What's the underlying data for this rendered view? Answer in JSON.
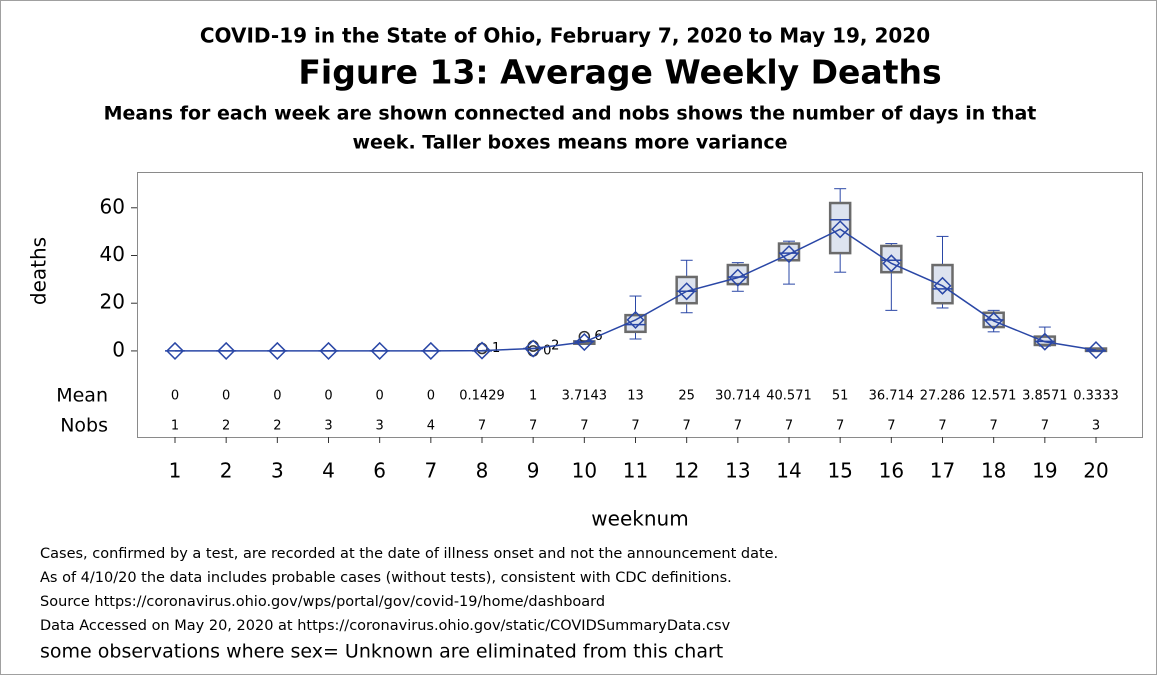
{
  "chart_data": {
    "type": "box",
    "supertitle": "COVID-19 in the State of Ohio, February 7, 2020 to May 19, 2020",
    "title": "Figure 13: Average Weekly Deaths",
    "subtitle": [
      "Means for each week are shown connected and nobs shows the number of days in that",
      "week. Taller boxes means more variance"
    ],
    "x_label": "weeknum",
    "y_label": "deaths",
    "categories": [
      1,
      2,
      3,
      4,
      6,
      7,
      8,
      9,
      10,
      11,
      12,
      13,
      14,
      15,
      16,
      17,
      18,
      19,
      20
    ],
    "min": [
      0,
      0,
      0,
      0,
      0,
      0,
      0,
      1,
      3,
      5,
      16,
      25,
      28,
      33,
      17,
      18,
      8,
      2,
      0
    ],
    "q1": [
      0,
      0,
      0,
      0,
      0,
      0,
      0,
      1,
      3,
      8,
      20,
      28,
      38,
      41,
      33,
      20,
      10,
      2.5,
      0
    ],
    "median": [
      0,
      0,
      0,
      0,
      0,
      0,
      0,
      1,
      4,
      11,
      25,
      31,
      41,
      55,
      38,
      26,
      13,
      4,
      0
    ],
    "q3": [
      0,
      0,
      0,
      0,
      0,
      0,
      0,
      1,
      4,
      15,
      31,
      36,
      45,
      62,
      44,
      36,
      16,
      6,
      1
    ],
    "max": [
      0,
      0,
      0,
      0,
      0,
      0,
      0,
      1,
      4,
      23,
      38,
      37,
      46,
      68,
      45,
      48,
      17,
      10,
      1
    ],
    "means": [
      0,
      0,
      0,
      0,
      0,
      0,
      0.1429,
      1,
      3.7143,
      13,
      25,
      30.714,
      40.571,
      51,
      36.714,
      27.286,
      12.571,
      3.8571,
      0.3333
    ],
    "nobs": [
      1,
      2,
      2,
      3,
      3,
      4,
      7,
      7,
      7,
      7,
      7,
      7,
      7,
      7,
      7,
      7,
      7,
      7,
      3
    ],
    "outliers": [
      [],
      [],
      [],
      [],
      [],
      [],
      [
        1
      ],
      [
        0,
        2
      ],
      [
        6
      ],
      [],
      [],
      [],
      [],
      [],
      [],
      [],
      [],
      [],
      []
    ],
    "row_labels": [
      "Mean",
      "Nobs"
    ],
    "ylim": [
      -8,
      75
    ],
    "yticks": [
      0,
      20,
      40,
      60
    ],
    "box_fill": "#dde3ef",
    "box_stroke": "#6b6b6b",
    "mean_color": "#2a47a6",
    "title_color": "#1a1a8c",
    "footnotes": [
      "Cases, confirmed by a test, are recorded at the date of illness onset and not the announcement date.",
      "As of 4/10/20 the data includes probable cases (without tests), consistent with CDC definitions.",
      "Source https://coronavirus.ohio.gov/wps/portal/gov/covid-19/home/dashboard",
      "Data Accessed on May 20, 2020 at https://coronavirus.ohio.gov/static/COVIDSummaryData.csv",
      "some observations where sex= Unknown are eliminated from this chart"
    ]
  }
}
